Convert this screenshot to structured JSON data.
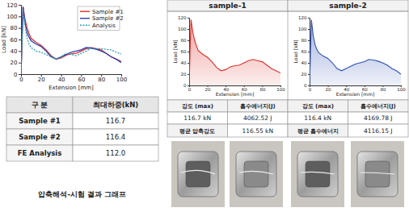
{
  "chart_data": [
    {
      "type": "line",
      "x": [
        0,
        1,
        2,
        4,
        6,
        8,
        10,
        15,
        20,
        25,
        30,
        35,
        40,
        45,
        50,
        55,
        60,
        65,
        70,
        75,
        80,
        85,
        90,
        95,
        100
      ],
      "xlim": [
        0,
        100
      ],
      "xticks": [
        0,
        20,
        40,
        60,
        80,
        100
      ],
      "ylim": [
        0,
        120
      ],
      "yticks": [
        0,
        20,
        40,
        60,
        80,
        100,
        120
      ],
      "x_label": "Extension [mm]",
      "y_label": "Load [kN]",
      "legend": "upper right",
      "series": [
        {
          "name": "Sample #1",
          "color": "#e0302a",
          "values": [
            0,
            60,
            116.7,
            95,
            80,
            70,
            62,
            55,
            50,
            42,
            32,
            26,
            28,
            33,
            35,
            36,
            40,
            44,
            46,
            44,
            42,
            36,
            30,
            26,
            22
          ]
        },
        {
          "name": "Sample #2",
          "color": "#2b3fb0",
          "values": [
            0,
            60,
            116.4,
            88,
            72,
            64,
            58,
            52,
            48,
            40,
            30,
            26,
            30,
            34,
            38,
            40,
            42,
            46,
            45,
            43,
            40,
            36,
            30,
            26,
            20
          ]
        },
        {
          "name": "Analysis",
          "color": "#2a9db5",
          "line_style": "dotted",
          "values": [
            0,
            55,
            112,
            85,
            62,
            52,
            46,
            40,
            38,
            34,
            30,
            26,
            30,
            36,
            34,
            32,
            36,
            40,
            45,
            44,
            44,
            43,
            42,
            38,
            35
          ]
        }
      ]
    },
    {
      "type": "area",
      "title": "sample-1",
      "x": [
        0,
        1,
        2,
        4,
        6,
        8,
        10,
        15,
        20,
        25,
        30,
        35,
        40,
        45,
        50,
        55,
        60,
        65,
        70,
        75,
        80,
        85,
        90,
        95,
        100
      ],
      "xlim": [
        0,
        100
      ],
      "xticks": [
        0,
        20,
        40,
        60,
        80,
        100
      ],
      "ylim": [
        0,
        120
      ],
      "yticks": [
        0,
        20,
        40,
        60,
        80,
        100,
        120
      ],
      "x_label": "Extension [mm]",
      "y_label": "Load [kN]",
      "series": [
        {
          "color": "#d9302a",
          "values": [
            0,
            60,
            116.7,
            95,
            80,
            70,
            62,
            55,
            50,
            42,
            32,
            26,
            28,
            33,
            35,
            36,
            40,
            44,
            46,
            44,
            42,
            36,
            30,
            26,
            22
          ]
        }
      ]
    },
    {
      "type": "area",
      "title": "sample-2",
      "x": [
        0,
        1,
        2,
        4,
        6,
        8,
        10,
        15,
        20,
        25,
        30,
        35,
        40,
        45,
        50,
        55,
        60,
        65,
        70,
        75,
        80,
        85,
        90,
        95,
        100
      ],
      "xlim": [
        0,
        100
      ],
      "xticks": [
        0,
        20,
        40,
        60,
        80,
        100
      ],
      "ylim": [
        0,
        120
      ],
      "yticks": [
        0,
        20,
        40,
        60,
        80,
        100,
        120
      ],
      "x_label": "Extension [mm]",
      "y_label": "Load [kN]",
      "series": [
        {
          "color": "#2d4fb5",
          "values": [
            0,
            60,
            116.4,
            88,
            72,
            64,
            58,
            52,
            48,
            40,
            30,
            26,
            30,
            34,
            38,
            40,
            42,
            46,
            45,
            43,
            40,
            36,
            30,
            26,
            20
          ]
        }
      ]
    }
  ],
  "summary_table": {
    "header": [
      "구 분",
      "최대하중(kN)"
    ],
    "rows": [
      [
        "Sample #1",
        "116.7"
      ],
      [
        "Sample #2",
        "116.4"
      ],
      [
        "FE Analysis",
        "112.0"
      ]
    ]
  },
  "caption": "압축해석-시험 결과 그래프",
  "sample_results": [
    {
      "headers": [
        "강도 (max)",
        "흡수에너지(J)"
      ],
      "values": [
        "116.7 kN",
        "4062.52 J"
      ]
    },
    {
      "headers": [
        "강도 (max)",
        "흡수에너지(J)"
      ],
      "values": [
        "116.4 kN",
        "4169.78 J"
      ]
    }
  ],
  "averages": [
    {
      "label": "평균 압축강도",
      "value": "116.55 kN"
    },
    {
      "label": "평균 흡수에너지",
      "value": "4116.15 J"
    }
  ]
}
